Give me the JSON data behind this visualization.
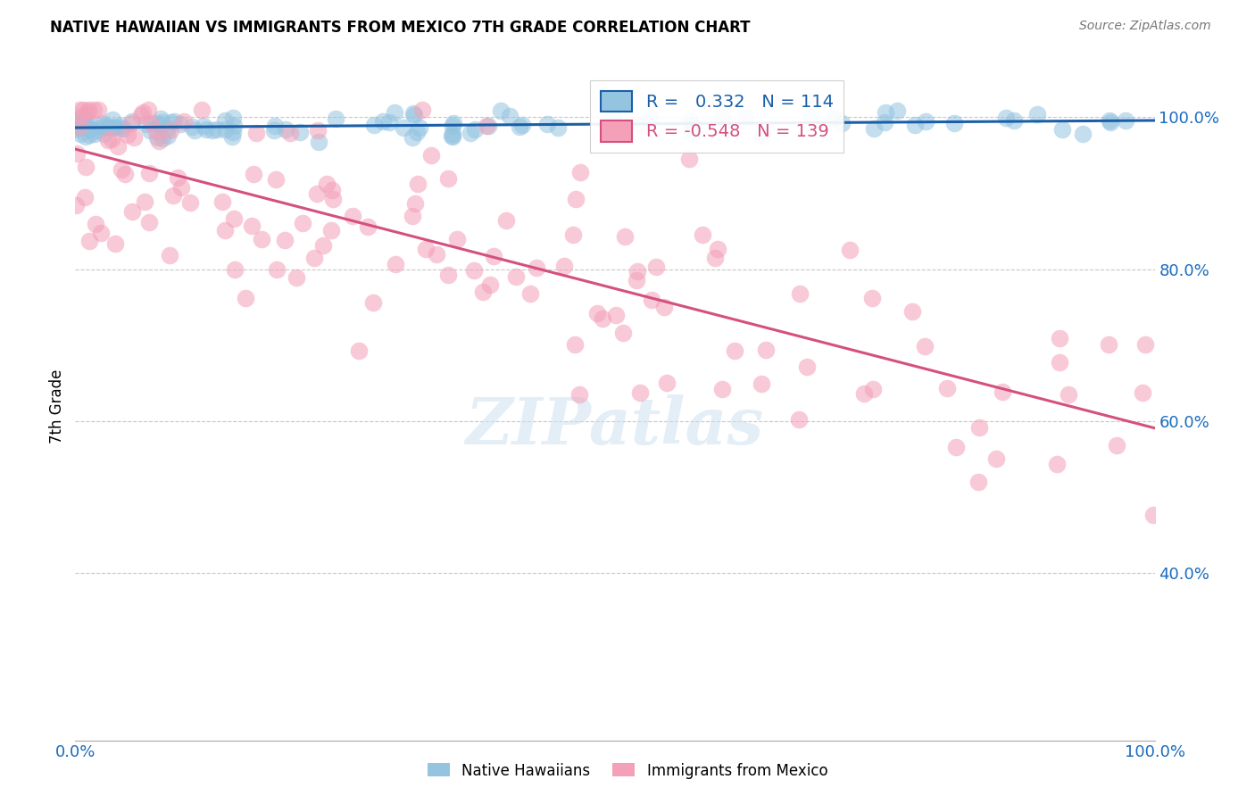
{
  "title": "NATIVE HAWAIIAN VS IMMIGRANTS FROM MEXICO 7TH GRADE CORRELATION CHART",
  "source": "Source: ZipAtlas.com",
  "ylabel": "7th Grade",
  "r_blue": 0.332,
  "n_blue": 114,
  "r_pink": -0.548,
  "n_pink": 139,
  "blue_color": "#94c4e0",
  "pink_color": "#f4a0b8",
  "blue_line_color": "#1a5fa8",
  "pink_line_color": "#d45080",
  "legend_label_blue": "Native Hawaiians",
  "legend_label_pink": "Immigrants from Mexico",
  "watermark": "ZIPatlas",
  "y_tick_labels": [
    "100.0%",
    "80.0%",
    "60.0%",
    "40.0%"
  ],
  "y_tick_positions": [
    1.0,
    0.8,
    0.6,
    0.4
  ],
  "ylim_min": 0.18,
  "ylim_max": 1.06
}
